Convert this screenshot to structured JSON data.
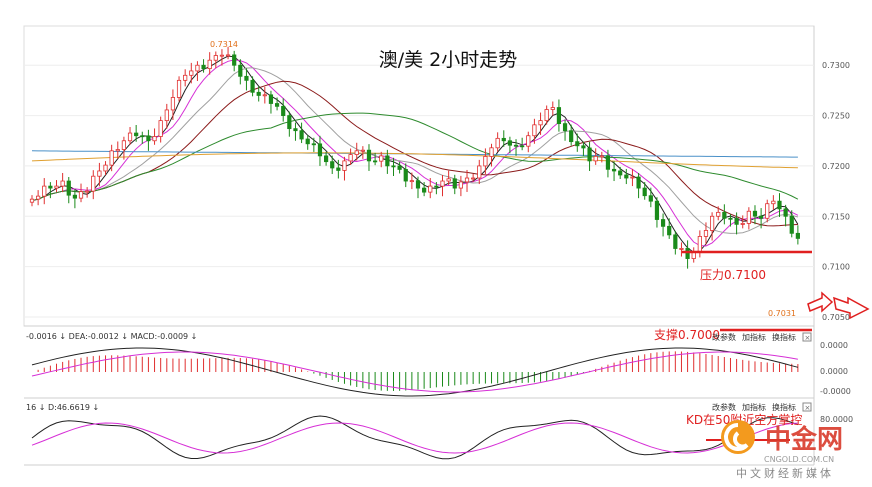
{
  "chart_data": [
    {
      "type": "candlestick",
      "title": "澳/美 2小时走势",
      "ylim": [
        0.7045,
        0.7335
      ],
      "y_ticks": [
        "0.7300",
        "0.7250",
        "0.7200",
        "0.7150",
        "0.7100",
        "0.7050"
      ],
      "grid": true,
      "annotations": {
        "high_label": "0.7314",
        "low_label": "0.7031",
        "resistance_label": "压力0.7100",
        "resistance_value": 0.71,
        "support_label": "支撑0.7000",
        "support_value": 0.7
      },
      "series": [
        {
          "name": "MA-black",
          "color": "#222222"
        },
        {
          "name": "MA-magenta",
          "color": "#d62fd6"
        },
        {
          "name": "MA-gray",
          "color": "#a0a0a0"
        },
        {
          "name": "MA-brown",
          "color": "#8b1a1a"
        },
        {
          "name": "MA-green",
          "color": "#2e8b2e"
        },
        {
          "name": "MA-blue",
          "color": "#4a90c8"
        },
        {
          "name": "MA-orange",
          "color": "#e0a030"
        }
      ],
      "close_path": [
        0.717,
        0.7178,
        0.7185,
        0.7168,
        0.7175,
        0.7195,
        0.7215,
        0.7225,
        0.723,
        0.7225,
        0.7245,
        0.7268,
        0.729,
        0.73,
        0.7305,
        0.731,
        0.73,
        0.7285,
        0.727,
        0.7262,
        0.725,
        0.7235,
        0.7222,
        0.721,
        0.7198,
        0.7205,
        0.7215,
        0.7205,
        0.721,
        0.72,
        0.7185,
        0.7178,
        0.718,
        0.7185,
        0.7178,
        0.7188,
        0.72,
        0.7218,
        0.7225,
        0.722,
        0.723,
        0.7245,
        0.7258,
        0.7235,
        0.722,
        0.7205,
        0.721,
        0.7195,
        0.7188,
        0.7178,
        0.7165,
        0.714,
        0.7118,
        0.7108,
        0.713,
        0.715,
        0.7148,
        0.7142,
        0.7155,
        0.7148,
        0.7165,
        0.715,
        0.7128
      ]
    },
    {
      "type": "line",
      "title": "MACD",
      "header_text": "-0.0016 ↓ DEA:-0.0012 ↓ MACD:-0.0009 ↓",
      "y_ticks": [
        "0.0000",
        "0.0000",
        "-0.0000"
      ],
      "buttons": [
        "改参数",
        "加指标",
        "换指标"
      ]
    },
    {
      "type": "line",
      "title": "KD",
      "header_text": "16 ↓ D:46.6619 ↓",
      "y_ticks": [
        "80.0000"
      ],
      "buttons": [
        "改参数",
        "加指标",
        "换指标"
      ],
      "annotation": "KD在50附近空方掌控"
    }
  ],
  "watermark": {
    "brand": "中金网",
    "site": "CNGOLD.COM.CN",
    "tagline": "中文财经新媒体"
  },
  "colors": {
    "up": "#e03030",
    "down": "#1a8a1a",
    "resistance_line": "#e02020",
    "annotation_text": "#e02020",
    "brand_orange": "#f39a1e",
    "brand_red": "#d83a2a"
  }
}
